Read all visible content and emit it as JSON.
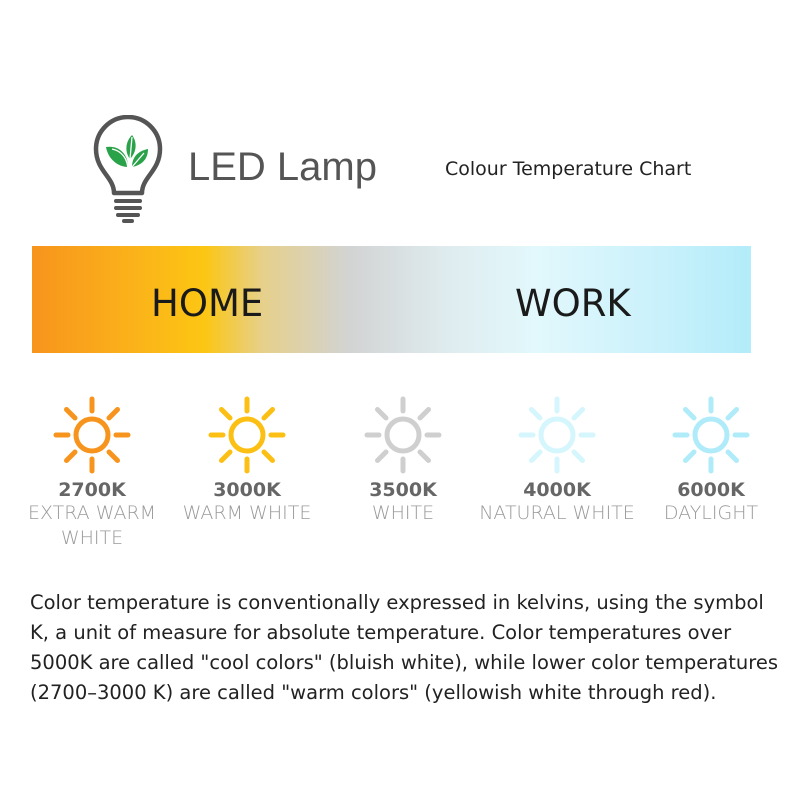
{
  "header": {
    "title": "LED Lamp",
    "subtitle": "Colour Temperature Chart",
    "logo_icon": "lightbulb-leaf-icon"
  },
  "bar": {
    "left_label": "HOME",
    "right_label": "WORK",
    "gradient": [
      "#f7941d",
      "#fcc613",
      "#d2d3d3",
      "#e2f8fc",
      "#b3ecfa"
    ]
  },
  "temperatures": [
    {
      "kelvin": "2700K",
      "name": "EXTRA WARM WHITE",
      "color": "#f7941d",
      "icon": "sun-icon"
    },
    {
      "kelvin": "3000K",
      "name": "WARM WHITE",
      "color": "#fcc014",
      "icon": "sun-icon"
    },
    {
      "kelvin": "3500K",
      "name": "WHITE",
      "color": "#cfcfcf",
      "icon": "sun-icon"
    },
    {
      "kelvin": "4000K",
      "name": "NATURAL WHITE",
      "color": "#d4f6fc",
      "icon": "sun-icon"
    },
    {
      "kelvin": "6000K",
      "name": "DAYLIGHT",
      "color": "#b0ebf9",
      "icon": "sun-icon"
    }
  ],
  "description": "Color temperature is conventionally expressed in kelvins, using the symbol K, a unit of measure for absolute temperature. Color temperatures over 5000K are called \"cool colors\" (bluish white), while lower color temperatures (2700–3000 K) are called \"warm colors\" (yellowish white through red)."
}
